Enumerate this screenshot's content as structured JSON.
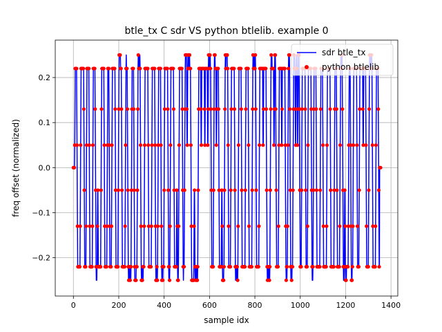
{
  "chart_data": {
    "type": "line",
    "title": "btle_tx C sdr VS python btlelib. example 0",
    "xlabel": "sample idx",
    "ylabel": "freq offset (normalized)",
    "xlim": [
      -80,
      1430
    ],
    "ylim": [
      -0.285,
      0.283
    ],
    "xticks": [
      0,
      200,
      400,
      600,
      800,
      1000,
      1200,
      1400
    ],
    "xtick_labels": [
      "0",
      "200",
      "400",
      "600",
      "800",
      "1000",
      "1200",
      "1400"
    ],
    "yticks": [
      -0.2,
      -0.1,
      0.0,
      0.1,
      0.2
    ],
    "ytick_labels": [
      "−0.2",
      "−0.1",
      "0.0",
      "0.1",
      "0.2"
    ],
    "grid": true,
    "legend_position": "top-right",
    "levels": [
      -0.25,
      -0.22,
      -0.13,
      -0.05,
      0.05,
      0.13,
      0.22,
      0.25
    ],
    "n_samples": 1350,
    "series": [
      {
        "name": "sdr btle_tx",
        "style": "line",
        "color": "#0000ff"
      },
      {
        "name": "python btlelib",
        "style": "dots",
        "color": "#ff0000"
      }
    ]
  }
}
